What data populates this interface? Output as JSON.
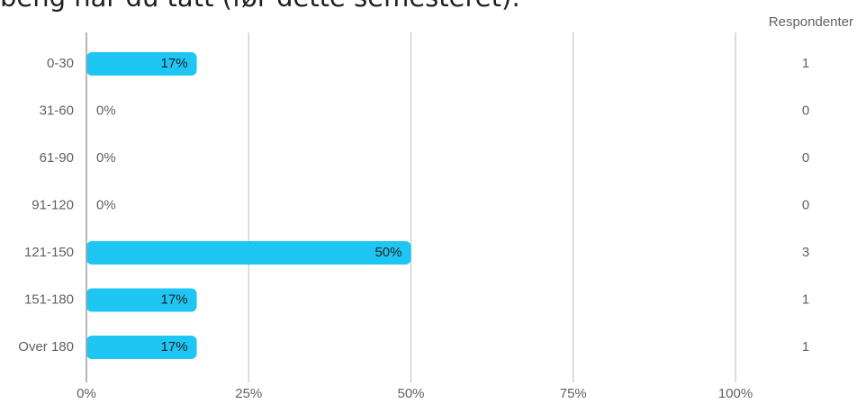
{
  "title": "beng har du tatt (før dette semesteret):",
  "respondents_header": "Respondenter",
  "colors": {
    "bar": "#1ec7f3",
    "grid": "#bdbdbd",
    "text": "#616161",
    "label": "#202124"
  },
  "chart_data": {
    "type": "bar",
    "orientation": "horizontal",
    "categories": [
      "0-30",
      "31-60",
      "61-90",
      "91-120",
      "121-150",
      "151-180",
      "Over 180"
    ],
    "values": [
      17,
      0,
      0,
      0,
      50,
      17,
      17
    ],
    "value_labels": [
      "17%",
      "0%",
      "0%",
      "0%",
      "50%",
      "17%",
      "17%"
    ],
    "respondents": [
      "1",
      "0",
      "0",
      "0",
      "3",
      "1",
      "1"
    ],
    "xlim": [
      0,
      100
    ],
    "xticks": [
      0,
      25,
      50,
      75,
      100
    ],
    "xtick_labels": [
      "0%",
      "25%",
      "50%",
      "75%",
      "100%"
    ],
    "grid": true
  }
}
